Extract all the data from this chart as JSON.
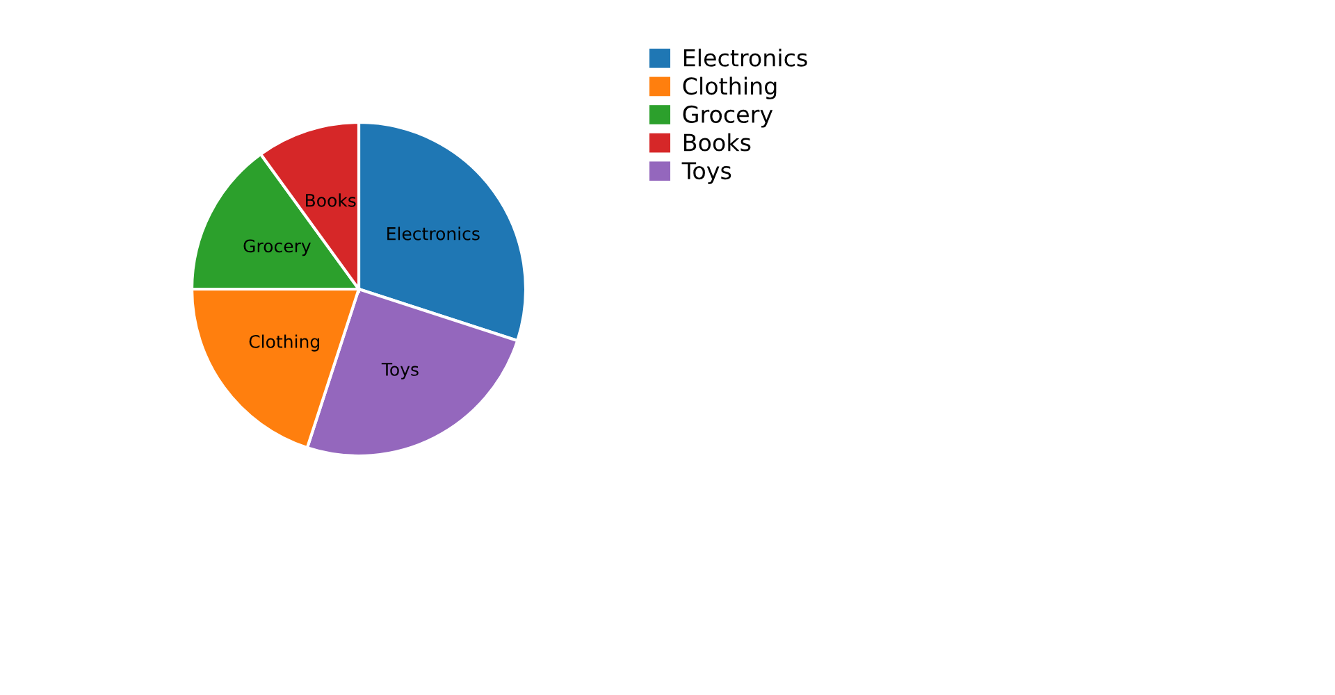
{
  "chart_data": {
    "type": "pie",
    "categories": [
      "Electronics",
      "Clothing",
      "Grocery",
      "Books",
      "Toys"
    ],
    "values": [
      30,
      20,
      15,
      10,
      25
    ],
    "colors": [
      "#1f77b4",
      "#ff7f0e",
      "#2ca02c",
      "#d62728",
      "#9467bd"
    ],
    "legend": "top right"
  }
}
